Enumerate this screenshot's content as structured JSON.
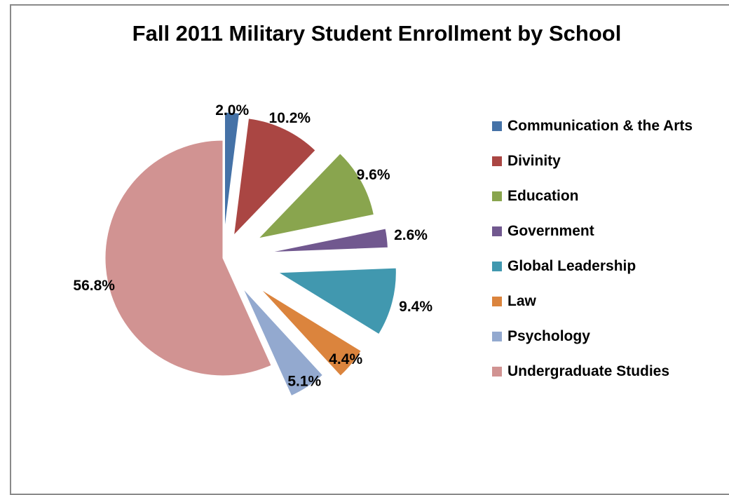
{
  "chart_data": {
    "type": "pie",
    "title": "Fall 2011 Military Student Enrollment by School",
    "slices": [
      {
        "name": "Communication & the Arts",
        "value": 2.0,
        "label": "2.0%",
        "color": "#4572A7"
      },
      {
        "name": "Divinity",
        "value": 10.2,
        "label": "10.2%",
        "color": "#AA4643"
      },
      {
        "name": "Education",
        "value": 9.6,
        "label": "9.6%",
        "color": "#89A54E"
      },
      {
        "name": "Government",
        "value": 2.6,
        "label": "2.6%",
        "color": "#71588F"
      },
      {
        "name": "Global Leadership",
        "value": 9.4,
        "label": "9.4%",
        "color": "#4198AF"
      },
      {
        "name": "Law",
        "value": 4.4,
        "label": "4.4%",
        "color": "#DB843D"
      },
      {
        "name": "Psychology",
        "value": 5.1,
        "label": "5.1%",
        "color": "#93A9CF"
      },
      {
        "name": "Undergraduate Studies",
        "value": 56.8,
        "label": "56.8%",
        "color": "#D19392"
      }
    ],
    "exploded": true,
    "start_angle": "12 o'clock, clockwise",
    "legend_position": "right"
  }
}
